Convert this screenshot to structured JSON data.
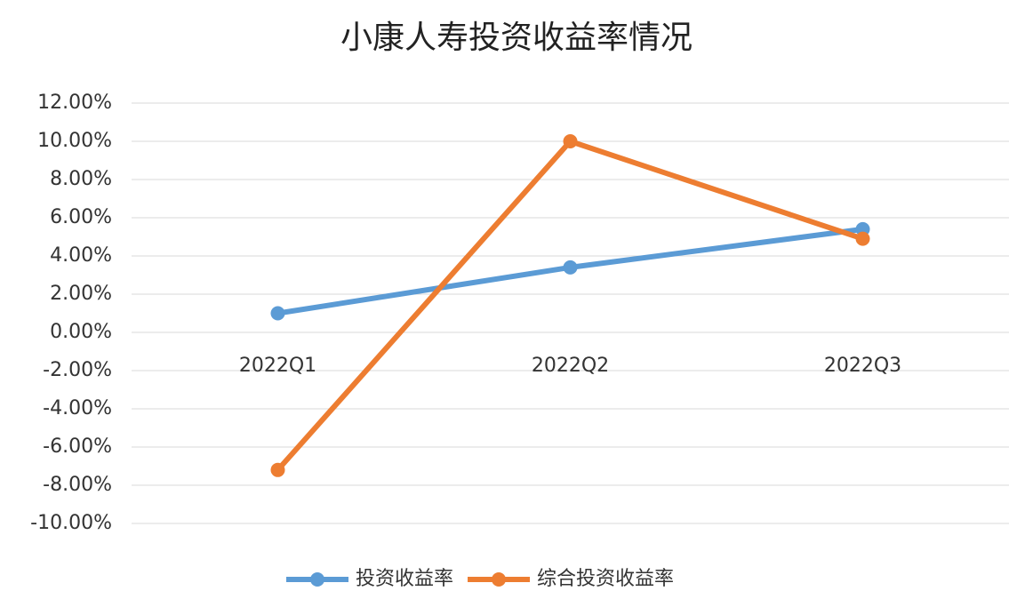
{
  "chart_data": {
    "type": "line",
    "title": "小康人寿投资收益率情况",
    "categories": [
      "2022Q1",
      "2022Q2",
      "2022Q3"
    ],
    "series": [
      {
        "name": "投资收益率",
        "color": "#5b9bd5",
        "values": [
          1.0,
          3.4,
          5.4
        ]
      },
      {
        "name": "综合投资收益率",
        "color": "#ed7d31",
        "values": [
          -7.2,
          10.0,
          4.9
        ]
      }
    ],
    "ylim": [
      -10,
      12
    ],
    "yticks": [
      {
        "value": -10,
        "label": "-10.00%"
      },
      {
        "value": -8,
        "label": "-8.00%"
      },
      {
        "value": -6,
        "label": "-6.00%"
      },
      {
        "value": -4,
        "label": "-4.00%"
      },
      {
        "value": -2,
        "label": "-2.00%"
      },
      {
        "value": 0,
        "label": "0.00%"
      },
      {
        "value": 2,
        "label": "2.00%"
      },
      {
        "value": 4,
        "label": "4.00%"
      },
      {
        "value": 6,
        "label": "6.00%"
      },
      {
        "value": 8,
        "label": "8.00%"
      },
      {
        "value": 10,
        "label": "10.00%"
      },
      {
        "value": 12,
        "label": "12.00%"
      }
    ],
    "grid": true,
    "legend": "bottom"
  }
}
